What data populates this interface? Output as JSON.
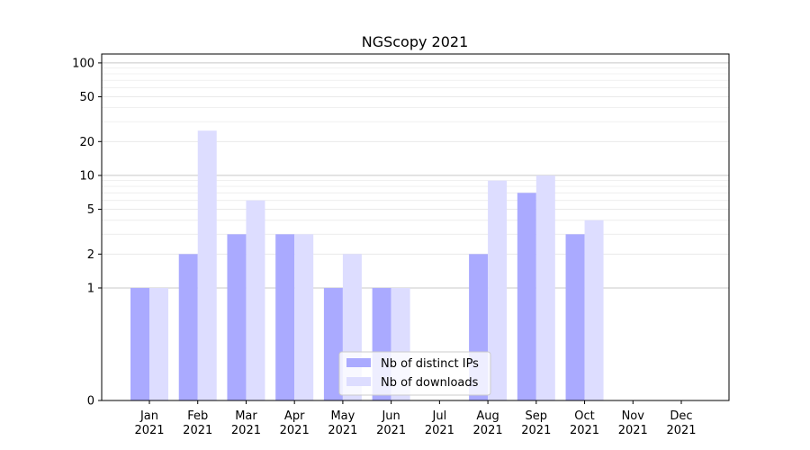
{
  "chart_data": {
    "type": "bar",
    "title": "NGScopy 2021",
    "xlabel": "",
    "ylabel": "",
    "scale": "symlog",
    "categories": [
      {
        "month": "Jan",
        "year": "2021"
      },
      {
        "month": "Feb",
        "year": "2021"
      },
      {
        "month": "Mar",
        "year": "2021"
      },
      {
        "month": "Apr",
        "year": "2021"
      },
      {
        "month": "May",
        "year": "2021"
      },
      {
        "month": "Jun",
        "year": "2021"
      },
      {
        "month": "Jul",
        "year": "2021"
      },
      {
        "month": "Aug",
        "year": "2021"
      },
      {
        "month": "Sep",
        "year": "2021"
      },
      {
        "month": "Oct",
        "year": "2021"
      },
      {
        "month": "Nov",
        "year": "2021"
      },
      {
        "month": "Dec",
        "year": "2021"
      }
    ],
    "series": [
      {
        "name": "Nb of distinct IPs",
        "color": "#aaaaff",
        "values": [
          1,
          2,
          3,
          3,
          1,
          1,
          0,
          2,
          7,
          3,
          0,
          0
        ]
      },
      {
        "name": "Nb of downloads",
        "color": "#ddddff",
        "values": [
          1,
          25,
          6,
          3,
          2,
          1,
          0,
          9,
          10,
          4,
          0,
          0
        ]
      }
    ],
    "yticks": [
      0,
      1,
      2,
      5,
      10,
      20,
      50,
      100
    ],
    "ytick_labels": [
      "0",
      "1",
      "2",
      "5",
      "10",
      "20",
      "50",
      "100"
    ],
    "ylim": [
      0,
      120
    ],
    "grid": "horizontal",
    "legend_position": "bottom-center"
  }
}
